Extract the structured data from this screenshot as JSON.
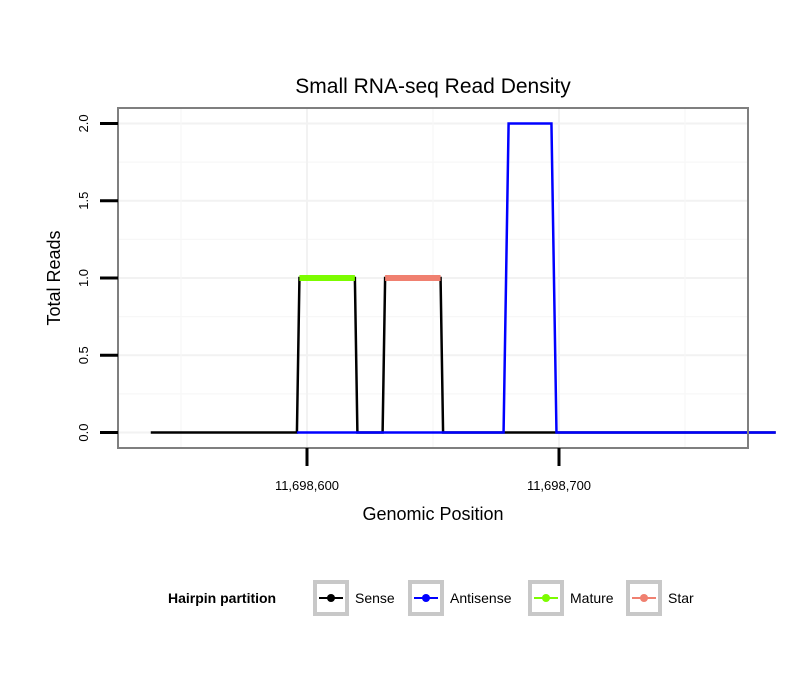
{
  "chart_data": {
    "type": "line",
    "title": "Small RNA-seq Read Density",
    "xlabel": "Genomic Position",
    "ylabel": "Total Reads",
    "xlim": [
      11698525,
      11698775
    ],
    "ylim": [
      -0.1,
      2.1
    ],
    "x_ticks": [
      {
        "value": 11698600,
        "label": "11,698,600"
      },
      {
        "value": 11698700,
        "label": "11,698,700"
      }
    ],
    "y_ticks": [
      {
        "value": 0,
        "label": "0.0"
      },
      {
        "value": 0.5,
        "label": "0.5"
      },
      {
        "value": 1,
        "label": "1.0"
      },
      {
        "value": 1.5,
        "label": "1.5"
      },
      {
        "value": 2,
        "label": "2.0"
      }
    ],
    "grid": true,
    "legend_position": "bottom",
    "legend_title": "Hairpin partition",
    "series": [
      {
        "name": "Sense",
        "color": "#000000",
        "width": 2.5,
        "x": [
          11698538,
          11698596,
          11698597,
          11698619,
          11698620,
          11698630,
          11698631,
          11698653,
          11698654,
          11698786
        ],
        "y": [
          0,
          0,
          1,
          1,
          0,
          0,
          1,
          1,
          0,
          0
        ]
      },
      {
        "name": "Antisense",
        "color": "#0000ff",
        "width": 2.5,
        "x": [
          11698596,
          11698678,
          11698680,
          11698697,
          11698699,
          11698786
        ],
        "y": [
          0,
          0,
          2,
          2,
          0,
          0
        ]
      },
      {
        "name": "Mature",
        "color": "#7cfc00",
        "width": 6,
        "x": [
          11698597,
          11698619
        ],
        "y": [
          1,
          1
        ]
      },
      {
        "name": "Star",
        "color": "#f08070",
        "width": 6,
        "x": [
          11698631,
          11698653
        ],
        "y": [
          1,
          1
        ]
      }
    ]
  }
}
